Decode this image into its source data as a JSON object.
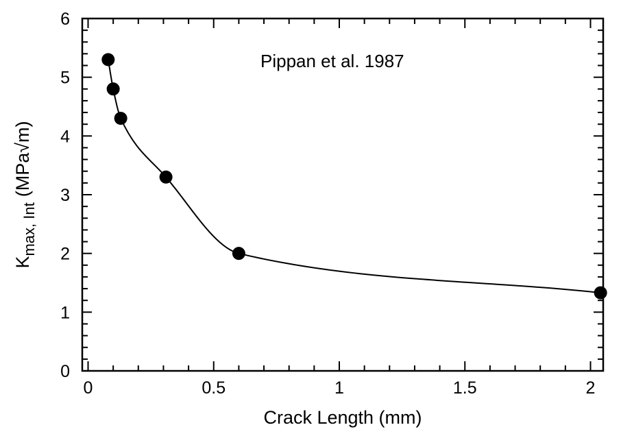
{
  "chart_data": {
    "type": "scatter",
    "title": "",
    "xlabel": "Crack Length (mm)",
    "ylabel_main": "K",
    "ylabel_sub": "max, Int",
    "ylabel_units": "(MPa√m)",
    "xlim": [
      0,
      2.05
    ],
    "ylim": [
      0,
      6
    ],
    "x_ticks": [
      0,
      0.5,
      1,
      1.5,
      2
    ],
    "x_tick_labels": [
      "0",
      "0.5",
      "1",
      "1.5",
      "2"
    ],
    "y_ticks": [
      0,
      1,
      2,
      3,
      4,
      5,
      6
    ],
    "y_tick_labels": [
      "0",
      "1",
      "2",
      "3",
      "4",
      "5",
      "6"
    ],
    "grid": false,
    "annotation": "Pippan et al. 1987",
    "series": [
      {
        "points": [
          {
            "x": 0.08,
            "y": 5.3
          },
          {
            "x": 0.1,
            "y": 4.8
          },
          {
            "x": 0.13,
            "y": 4.3
          },
          {
            "x": 0.31,
            "y": 3.3
          },
          {
            "x": 0.6,
            "y": 2.0
          },
          {
            "x": 2.04,
            "y": 1.33
          }
        ],
        "marker": "filled-circle",
        "color": "#000000",
        "fit_curve": true
      }
    ]
  }
}
